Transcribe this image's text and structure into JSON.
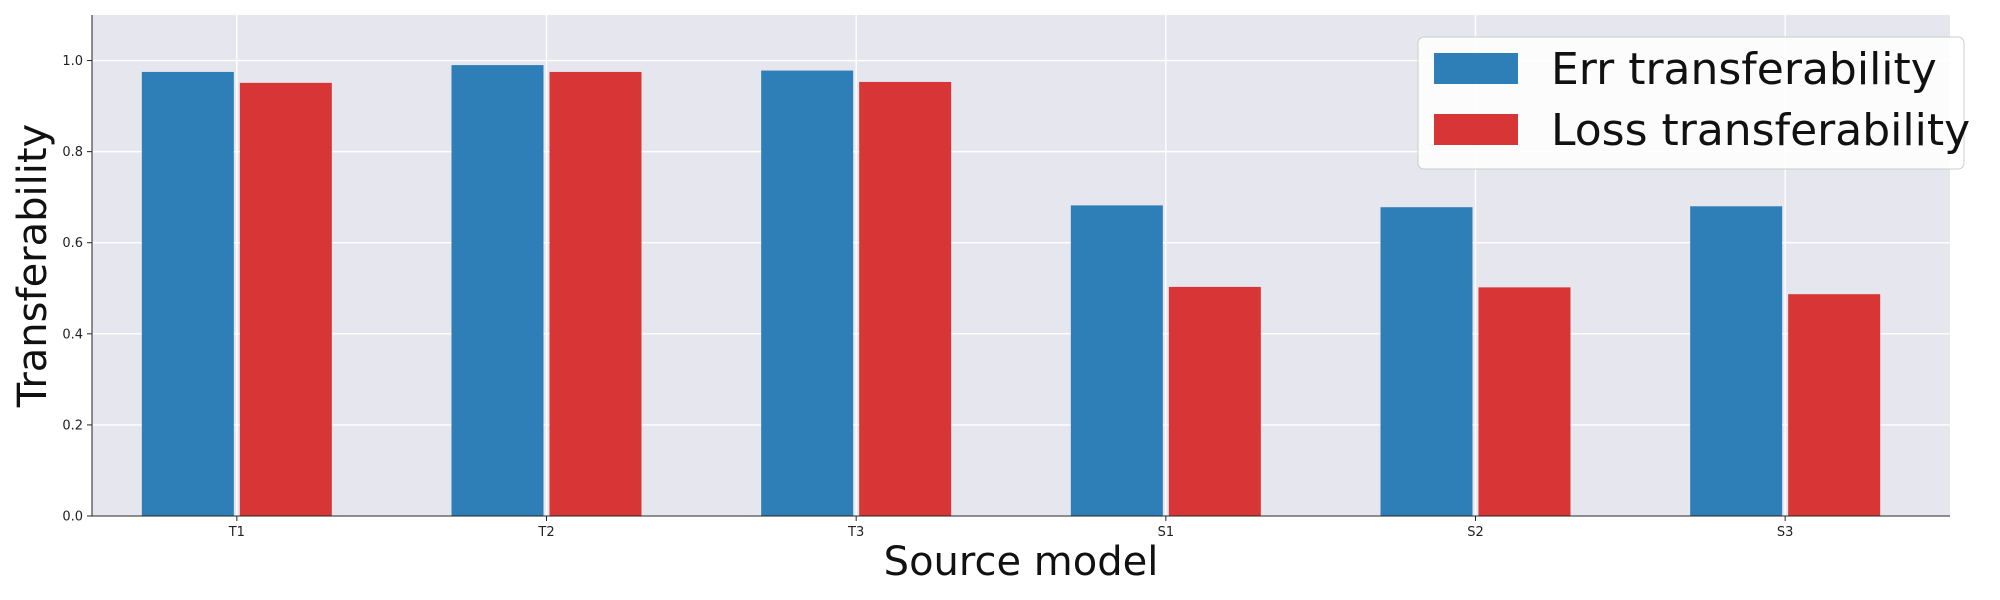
{
  "chart_data": {
    "type": "bar",
    "categories": [
      "T1",
      "T2",
      "T3",
      "S1",
      "S2",
      "S3"
    ],
    "series": [
      {
        "name": "Err transferability",
        "values": [
          0.975,
          0.99,
          0.978,
          0.682,
          0.678,
          0.68
        ],
        "color": "#2e7fb8"
      },
      {
        "name": "Loss transferability",
        "values": [
          0.951,
          0.975,
          0.953,
          0.503,
          0.502,
          0.487
        ],
        "color": "#d83536"
      }
    ],
    "xlabel": "Source model",
    "ylabel": "Transferability",
    "ylim": [
      0,
      1.1
    ],
    "yticks": [
      "0.0",
      "0.2",
      "0.4",
      "0.6",
      "0.8",
      "1.0"
    ],
    "grid": true,
    "legend_position": "top-right",
    "plot_background": "#e6e6ee"
  }
}
